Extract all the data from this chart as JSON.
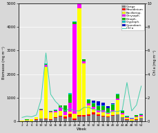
{
  "weeks": [
    2,
    4,
    6,
    8,
    10,
    12,
    14,
    16,
    18,
    20,
    22,
    24,
    26,
    28,
    30,
    32,
    34,
    36,
    38,
    40,
    42,
    44,
    46,
    48,
    50,
    52
  ],
  "Uebrige": [
    20,
    30,
    20,
    80,
    120,
    100,
    80,
    150,
    200,
    120,
    180,
    80,
    200,
    200,
    250,
    300,
    250,
    200,
    180,
    250,
    300,
    180,
    80,
    40,
    80,
    150
  ],
  "Mesodinium": [
    5,
    5,
    5,
    5,
    15,
    20,
    10,
    30,
    40,
    80,
    150,
    40,
    80,
    60,
    40,
    80,
    60,
    50,
    40,
    25,
    15,
    12,
    8,
    5,
    8,
    15
  ],
  "Bacillariop": [
    10,
    40,
    60,
    100,
    350,
    2200,
    300,
    200,
    200,
    80,
    80,
    200,
    4500,
    2200,
    400,
    150,
    80,
    150,
    100,
    150,
    600,
    100,
    60,
    60,
    100,
    60
  ],
  "Chrysoph": [
    5,
    5,
    5,
    5,
    30,
    80,
    30,
    60,
    150,
    150,
    400,
    3800,
    200,
    80,
    80,
    80,
    80,
    80,
    40,
    40,
    60,
    80,
    40,
    15,
    40,
    40
  ],
  "Dinoph": [
    5,
    5,
    5,
    5,
    15,
    30,
    20,
    40,
    80,
    250,
    350,
    80,
    80,
    80,
    150,
    150,
    180,
    180,
    200,
    250,
    180,
    80,
    40,
    20,
    40,
    40
  ],
  "Cryptoph": [
    3,
    3,
    3,
    3,
    8,
    15,
    8,
    15,
    25,
    15,
    40,
    25,
    40,
    25,
    25,
    40,
    25,
    15,
    15,
    25,
    25,
    15,
    8,
    8,
    12,
    15
  ],
  "Cyanobact": [
    0,
    0,
    0,
    0,
    0,
    0,
    0,
    0,
    0,
    0,
    0,
    0,
    0,
    0,
    0,
    80,
    180,
    130,
    80,
    40,
    0,
    0,
    0,
    0,
    0,
    0
  ],
  "chl_a": [
    0.35,
    0.45,
    0.4,
    0.55,
    1.9,
    5.8,
    2.3,
    1.7,
    1.3,
    0.9,
    1.1,
    0.9,
    0.9,
    1.2,
    1.2,
    1.0,
    0.95,
    0.85,
    0.75,
    0.85,
    0.85,
    0.95,
    3.3,
    0.9,
    1.4,
    3.0
  ],
  "colors": {
    "Uebrige": "#808080",
    "Mesodinium": "#ff0000",
    "Bacillariop": "#ffff00",
    "Chrysoph": "#ff00ff",
    "Dinoph": "#00bb00",
    "Cryptoph": "#00cccc",
    "Cyanobact": "#0000cc"
  },
  "ylim_left": [
    0,
    5000
  ],
  "ylim_right": [
    0,
    10
  ],
  "xlabel": "Week",
  "ylabel_left": "Biomasse (mg m⁻³)",
  "ylabel_right": "Chl a (mg m⁻³)",
  "legend_labels": [
    "Übrige",
    "Mesodinium",
    "Bacillariop.",
    "Chrysoph.",
    "Dinoph.",
    "Cryptoph.",
    "Cyanobact.",
    "Chl a"
  ],
  "chl_color": "#44ccaa",
  "bg_color": "#d8d8d8",
  "plot_bg": "#e8e8e8",
  "grid_color": "#ffffff",
  "yticks_left": [
    0,
    1000,
    2000,
    3000,
    4000,
    5000
  ],
  "yticks_right": [
    0,
    2,
    4,
    6,
    8,
    10
  ]
}
